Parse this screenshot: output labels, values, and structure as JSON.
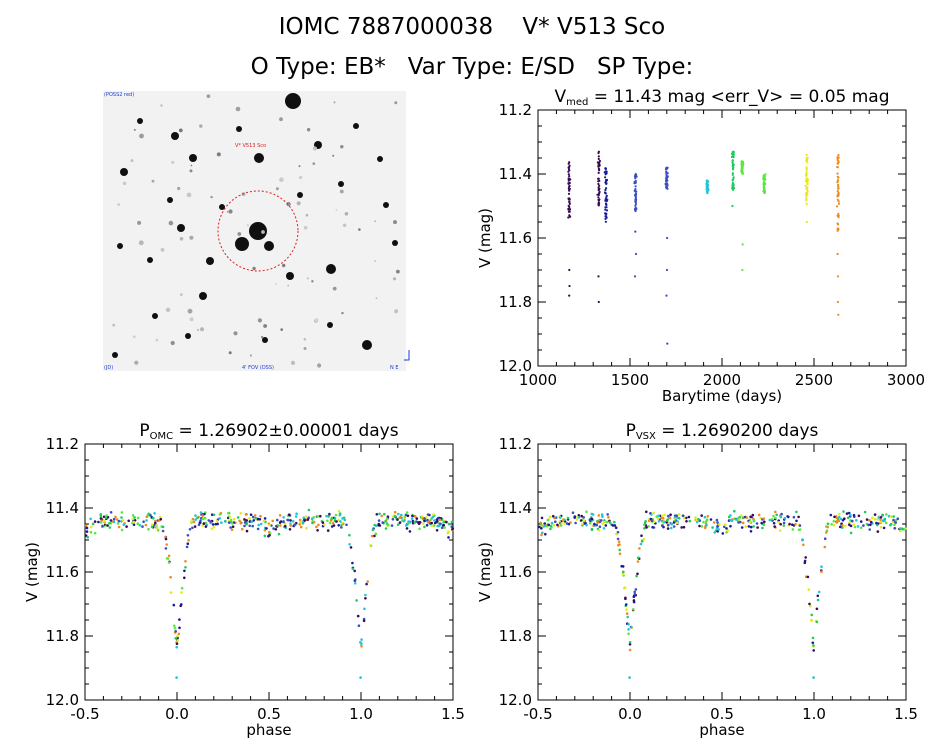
{
  "header": {
    "line1": "IOMC 7887000038    V* V513 Sco",
    "line2": "O Type: EB*   Var Type: E/SD   SP Type:"
  },
  "image_panel": {
    "top_left_label": "(POSS2 red)",
    "target_label": "V* V513 Sco",
    "bottom_left_label": "(JD)",
    "bottom_center_label": "4' FOV (DSS)",
    "bottom_right_label": "N E"
  },
  "colors": {
    "seasons": [
      "#3b0a52",
      "#1a1a9c",
      "#3a4ec0",
      "#22c4d8",
      "#1bcc5e",
      "#58e83c",
      "#e8e81a",
      "#f08a1a"
    ]
  },
  "chart_data": [
    {
      "type": "scatter",
      "title_main": "V",
      "title_sub": "med",
      "title_rest": " = 11.43 mag <err_V> = 0.05 mag",
      "xlabel": "Barytime (days)",
      "ylabel": "V (mag)",
      "xlim": [
        1000,
        3000
      ],
      "ylim": [
        12.0,
        11.2
      ],
      "xticks": [
        "1000",
        "1500",
        "2000",
        "2500",
        "3000"
      ],
      "yticks": [
        "11.2",
        "11.4",
        "11.6",
        "11.8",
        "12.0"
      ],
      "groups": [
        {
          "x": 1170,
          "ymin": 11.36,
          "ymax": 11.54,
          "outliers": [
            11.7,
            11.75,
            11.78
          ]
        },
        {
          "x": 1330,
          "ymin": 11.33,
          "ymax": 11.5,
          "outliers": [
            11.72,
            11.8
          ]
        },
        {
          "x": 1370,
          "ymin": 11.38,
          "ymax": 11.55,
          "outliers": []
        },
        {
          "x": 1530,
          "ymin": 11.4,
          "ymax": 11.52,
          "outliers": [
            11.58,
            11.65,
            11.72
          ]
        },
        {
          "x": 1700,
          "ymin": 11.38,
          "ymax": 11.45,
          "outliers": [
            11.6,
            11.7,
            11.78,
            11.93
          ]
        },
        {
          "x": 1920,
          "ymin": 11.42,
          "ymax": 11.46,
          "outliers": []
        },
        {
          "x": 2060,
          "ymin": 11.33,
          "ymax": 11.45,
          "outliers": [
            11.5
          ]
        },
        {
          "x": 2110,
          "ymin": 11.36,
          "ymax": 11.4,
          "outliers": [
            11.62,
            11.7
          ]
        },
        {
          "x": 2230,
          "ymin": 11.4,
          "ymax": 11.46,
          "outliers": []
        },
        {
          "x": 2460,
          "ymin": 11.34,
          "ymax": 11.5,
          "outliers": [
            11.55
          ]
        },
        {
          "x": 2630,
          "ymin": 11.34,
          "ymax": 11.58,
          "outliers": [
            11.65,
            11.72,
            11.8,
            11.84
          ]
        }
      ]
    },
    {
      "type": "scatter",
      "title_main": "P",
      "title_sub": "OMC",
      "title_rest": " = 1.26902±0.00001 days",
      "xlabel": "phase",
      "ylabel": "V (mag)",
      "xlim": [
        -0.5,
        1.5
      ],
      "ylim": [
        12.0,
        11.2
      ],
      "xticks": [
        "-0.5",
        "0.0",
        "0.5",
        "1.0",
        "1.5"
      ],
      "yticks": [
        "11.2",
        "11.4",
        "11.6",
        "11.8",
        "12.0"
      ],
      "period_days": 1.26902
    },
    {
      "type": "scatter",
      "title_main": "P",
      "title_sub": "VSX",
      "title_rest": " = 1.2690200 days",
      "xlabel": "phase",
      "ylabel": "V (mag)",
      "xlim": [
        -0.5,
        1.5
      ],
      "ylim": [
        12.0,
        11.2
      ],
      "xticks": [
        "-0.5",
        "0.0",
        "0.5",
        "1.0",
        "1.5"
      ],
      "yticks": [
        "11.2",
        "11.4",
        "11.6",
        "11.8",
        "12.0"
      ],
      "period_days": 1.26902
    }
  ]
}
